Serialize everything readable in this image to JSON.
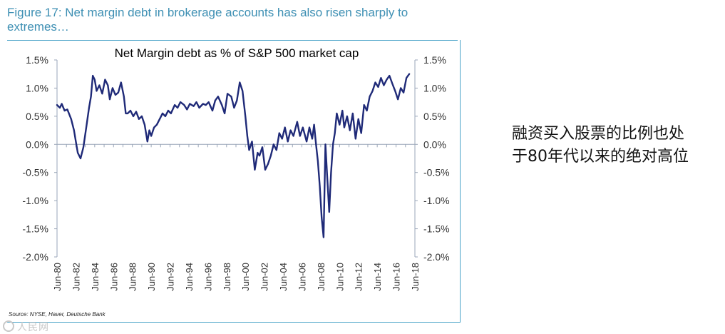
{
  "figure_title": "Figure 17: Net margin debt in brokerage accounts has also risen sharply to extremes…",
  "source": "Source: NYSE, Haver, Deutsche Bank",
  "watermark": "人民网",
  "annotation": {
    "line1": "融资买入股票的比例也处",
    "line2": "于80年代以来的绝对高位"
  },
  "colors": {
    "series": "#1f2a78",
    "title": "#3d8fb3",
    "frame": "#4aa3c8"
  },
  "chart_data": {
    "type": "line",
    "title": "Net Margin debt as % of S&P 500 market cap",
    "xlabel": "",
    "ylabel": "",
    "ylim": [
      -2.0,
      1.5
    ],
    "xlim": [
      1980.5,
      2018.5
    ],
    "y_ticks": [
      1.5,
      1.0,
      0.5,
      0.0,
      -0.5,
      -1.0,
      -1.5,
      -2.0
    ],
    "y_tick_labels": [
      "1.5%",
      "1.0%",
      "0.5%",
      "0.0%",
      "-0.5%",
      "-1.0%",
      "-1.5%",
      "-2.0%"
    ],
    "x_tick_labels": [
      "Jun-80",
      "Jun-82",
      "Jun-84",
      "Jun-86",
      "Jun-88",
      "Jun-90",
      "Jun-92",
      "Jun-94",
      "Jun-96",
      "Jun-98",
      "Jun-00",
      "Jun-02",
      "Jun-04",
      "Jun-06",
      "Jun-08",
      "Jun-10",
      "Jun-12",
      "Jun-14",
      "Jun-16",
      "Jun-18"
    ],
    "x_tick_values": [
      1980.5,
      1982.5,
      1984.5,
      1986.5,
      1988.5,
      1990.5,
      1992.5,
      1994.5,
      1996.5,
      1998.5,
      2000.5,
      2002.5,
      2004.5,
      2006.5,
      2008.5,
      2010.5,
      2012.5,
      2014.5,
      2016.5,
      2018.5
    ],
    "series": [
      {
        "name": "Net margin debt % of S&P 500 market cap",
        "x": [
          1980.5,
          1980.8,
          1981.0,
          1981.3,
          1981.6,
          1982.0,
          1982.3,
          1982.5,
          1982.7,
          1983.0,
          1983.3,
          1983.6,
          1983.9,
          1984.1,
          1984.3,
          1984.5,
          1984.7,
          1985.0,
          1985.3,
          1985.6,
          1985.9,
          1986.1,
          1986.4,
          1986.7,
          1987.0,
          1987.3,
          1987.6,
          1987.8,
          1988.0,
          1988.3,
          1988.6,
          1988.9,
          1989.2,
          1989.5,
          1989.8,
          1990.1,
          1990.3,
          1990.5,
          1990.8,
          1991.1,
          1991.4,
          1991.7,
          1992.0,
          1992.3,
          1992.6,
          1993.0,
          1993.3,
          1993.6,
          1994.0,
          1994.3,
          1994.6,
          1995.0,
          1995.3,
          1995.6,
          1996.0,
          1996.3,
          1996.6,
          1997.0,
          1997.3,
          1997.6,
          1998.0,
          1998.3,
          1998.6,
          1999.0,
          1999.3,
          1999.6,
          1999.9,
          2000.2,
          2000.5,
          2000.7,
          2000.9,
          2001.2,
          2001.5,
          2001.8,
          2002.0,
          2002.3,
          2002.6,
          2002.9,
          2003.2,
          2003.5,
          2003.8,
          2004.1,
          2004.4,
          2004.7,
          2005.0,
          2005.3,
          2005.6,
          2006.0,
          2006.3,
          2006.6,
          2007.0,
          2007.3,
          2007.6,
          2007.8,
          2008.0,
          2008.2,
          2008.4,
          2008.6,
          2008.8,
          2009.0,
          2009.2,
          2009.4,
          2009.6,
          2009.8,
          2010.0,
          2010.2,
          2010.5,
          2010.8,
          2011.0,
          2011.3,
          2011.6,
          2011.9,
          2012.2,
          2012.5,
          2012.8,
          2013.1,
          2013.4,
          2013.7,
          2014.0,
          2014.3,
          2014.6,
          2014.9,
          2015.2,
          2015.5,
          2015.8,
          2016.1,
          2016.4,
          2016.7,
          2017.0,
          2017.3,
          2017.6,
          2017.9
        ],
        "values": [
          0.7,
          0.65,
          0.72,
          0.6,
          0.62,
          0.45,
          0.25,
          0.05,
          -0.15,
          -0.25,
          -0.05,
          0.3,
          0.65,
          0.85,
          1.22,
          1.15,
          0.95,
          1.05,
          0.9,
          1.15,
          1.05,
          0.8,
          1.0,
          0.88,
          0.92,
          1.1,
          0.85,
          0.55,
          0.55,
          0.6,
          0.5,
          0.58,
          0.45,
          0.5,
          0.35,
          0.05,
          0.25,
          0.15,
          0.3,
          0.35,
          0.45,
          0.55,
          0.5,
          0.6,
          0.55,
          0.7,
          0.65,
          0.75,
          0.7,
          0.62,
          0.72,
          0.68,
          0.75,
          0.65,
          0.72,
          0.7,
          0.75,
          0.6,
          0.78,
          0.85,
          0.7,
          0.55,
          0.9,
          0.85,
          0.65,
          0.78,
          1.1,
          0.95,
          0.5,
          0.15,
          -0.1,
          0.05,
          -0.45,
          -0.15,
          -0.2,
          -0.05,
          -0.45,
          -0.35,
          -0.2,
          0.0,
          -0.1,
          0.2,
          0.1,
          0.3,
          0.05,
          0.25,
          0.15,
          0.4,
          0.15,
          0.3,
          0.05,
          0.3,
          0.1,
          0.35,
          0.0,
          -0.3,
          -0.75,
          -1.3,
          -1.65,
          0.0,
          -0.6,
          -1.2,
          -0.5,
          0.0,
          0.2,
          0.55,
          0.35,
          0.6,
          0.3,
          0.5,
          0.25,
          0.55,
          0.1,
          0.45,
          0.2,
          0.7,
          0.6,
          0.85,
          0.95,
          1.1,
          1.02,
          1.18,
          1.05,
          1.15,
          1.22,
          1.08,
          0.95,
          0.8,
          1.0,
          0.92,
          1.18,
          1.25
        ]
      }
    ]
  }
}
